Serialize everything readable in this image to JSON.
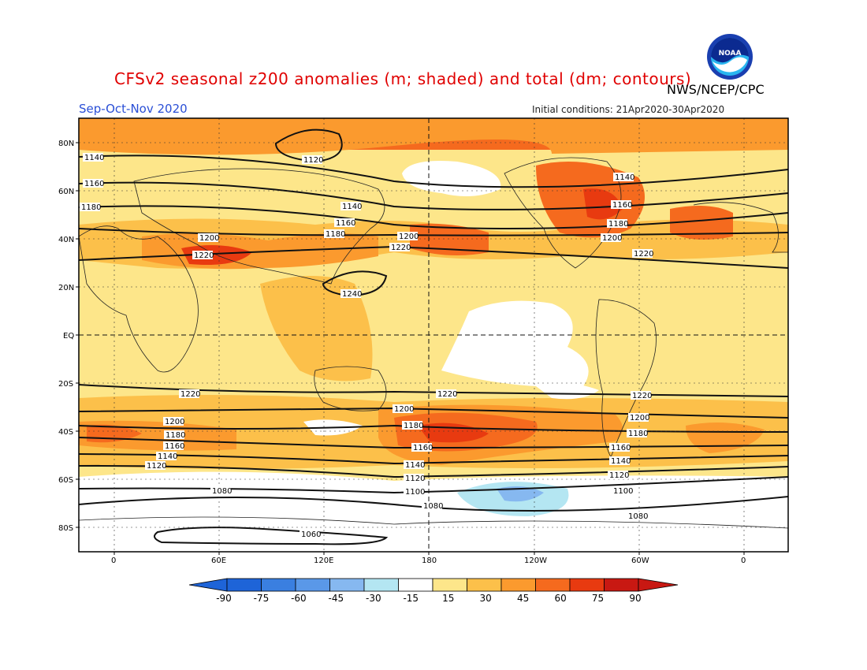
{
  "header": {
    "title": "CFSv2 seasonal z200 anomalies (m; shaded) and total (dm; contours)",
    "agency": "NWS/NCEP/CPC",
    "season": "Sep-Oct-Nov 2020",
    "initial_conditions": "Initial conditions: 21Apr2020-30Apr2020",
    "logo_text": "NOAA"
  },
  "map": {
    "lat_labels": [
      "80N",
      "60N",
      "40N",
      "20N",
      "EQ",
      "20S",
      "40S",
      "60S",
      "80S"
    ],
    "lon_labels": [
      "0",
      "60E",
      "120E",
      "180",
      "120W",
      "60W",
      "0"
    ]
  },
  "contour_labels": [
    "1120",
    "1140",
    "1160",
    "1180",
    "1140",
    "1160",
    "1180",
    "1200",
    "1220",
    "1200",
    "1220",
    "1140",
    "1160",
    "1180",
    "1200",
    "1220",
    "1240",
    "1220",
    "1220",
    "1220",
    "1200",
    "1200",
    "1200",
    "1180",
    "1180",
    "1180",
    "1160",
    "1160",
    "1160",
    "1140",
    "1140",
    "1140",
    "1120",
    "1120",
    "1120",
    "1100",
    "1100",
    "1080",
    "1080",
    "1080",
    "1060"
  ],
  "colorbar": {
    "tick_labels": [
      "-90",
      "-75",
      "-60",
      "-45",
      "-30",
      "-15",
      "15",
      "30",
      "45",
      "60",
      "75",
      "90"
    ],
    "colors": [
      "#1e64d8",
      "#3a7fe0",
      "#5a98e8",
      "#86b8f0",
      "#b4e6f2",
      "#ffffff",
      "#fde68a",
      "#fcc04a",
      "#fb9a2e",
      "#f56a1e",
      "#e83a10",
      "#c81812"
    ]
  }
}
